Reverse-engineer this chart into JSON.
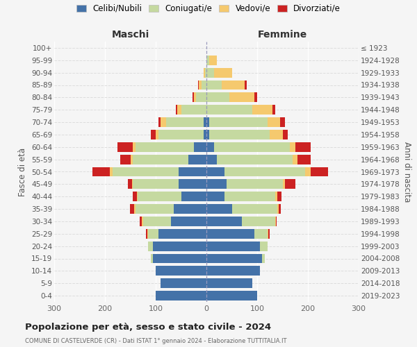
{
  "age_groups": [
    "0-4",
    "5-9",
    "10-14",
    "15-19",
    "20-24",
    "25-29",
    "30-34",
    "35-39",
    "40-44",
    "45-49",
    "50-54",
    "55-59",
    "60-64",
    "65-69",
    "70-74",
    "75-79",
    "80-84",
    "85-89",
    "90-94",
    "95-99",
    "100+"
  ],
  "birth_years": [
    "2019-2023",
    "2014-2018",
    "2009-2013",
    "2004-2008",
    "1999-2003",
    "1994-1998",
    "1989-1993",
    "1984-1988",
    "1979-1983",
    "1974-1978",
    "1969-1973",
    "1964-1968",
    "1959-1963",
    "1954-1958",
    "1949-1953",
    "1944-1948",
    "1939-1943",
    "1934-1938",
    "1929-1933",
    "1924-1928",
    "≤ 1923"
  ],
  "male_celibi": [
    100,
    90,
    100,
    105,
    105,
    95,
    70,
    65,
    50,
    55,
    55,
    35,
    25,
    5,
    5,
    0,
    0,
    0,
    0,
    0,
    0
  ],
  "male_coniugati": [
    0,
    0,
    0,
    5,
    10,
    20,
    55,
    75,
    85,
    90,
    130,
    110,
    115,
    90,
    75,
    50,
    20,
    10,
    3,
    0,
    0
  ],
  "male_vedovi": [
    0,
    0,
    0,
    0,
    0,
    2,
    2,
    2,
    2,
    2,
    5,
    5,
    5,
    5,
    10,
    8,
    5,
    5,
    2,
    0,
    0
  ],
  "male_divorziati": [
    0,
    0,
    0,
    0,
    0,
    2,
    5,
    8,
    8,
    8,
    35,
    20,
    30,
    10,
    5,
    2,
    2,
    2,
    0,
    0,
    0
  ],
  "female_nubili": [
    100,
    90,
    105,
    110,
    105,
    95,
    70,
    50,
    35,
    40,
    35,
    20,
    15,
    5,
    5,
    0,
    0,
    0,
    0,
    0,
    0
  ],
  "female_coniugate": [
    0,
    0,
    0,
    5,
    15,
    25,
    65,
    90,
    100,
    110,
    160,
    150,
    150,
    120,
    115,
    90,
    45,
    30,
    15,
    5,
    0
  ],
  "female_vedove": [
    0,
    0,
    0,
    0,
    0,
    2,
    2,
    2,
    5,
    5,
    10,
    10,
    10,
    25,
    25,
    40,
    50,
    45,
    35,
    15,
    0
  ],
  "female_divorziate": [
    0,
    0,
    0,
    0,
    0,
    2,
    2,
    5,
    8,
    20,
    35,
    25,
    30,
    10,
    10,
    5,
    5,
    5,
    0,
    0,
    0
  ],
  "color_celibi": "#4472a8",
  "color_coniugati": "#c5d9a0",
  "color_vedovi": "#f5c96e",
  "color_divorziati": "#cc2222",
  "bg_color": "#f5f5f5",
  "grid_color": "#dddddd",
  "center_line_color": "#9999bb",
  "title": "Popolazione per età, sesso e stato civile - 2024",
  "subtitle": "COMUNE DI CASTELVERDE (CR) - Dati ISTAT 1° gennaio 2024 - Elaborazione TUTTITALIA.IT",
  "legend_labels": [
    "Celibi/Nubili",
    "Coniugati/e",
    "Vedovi/e",
    "Divorziati/e"
  ],
  "ylabel_left": "Fasce di età",
  "ylabel_right": "Anni di nascita",
  "header_maschi": "Maschi",
  "header_femmine": "Femmine",
  "xlim": 300
}
